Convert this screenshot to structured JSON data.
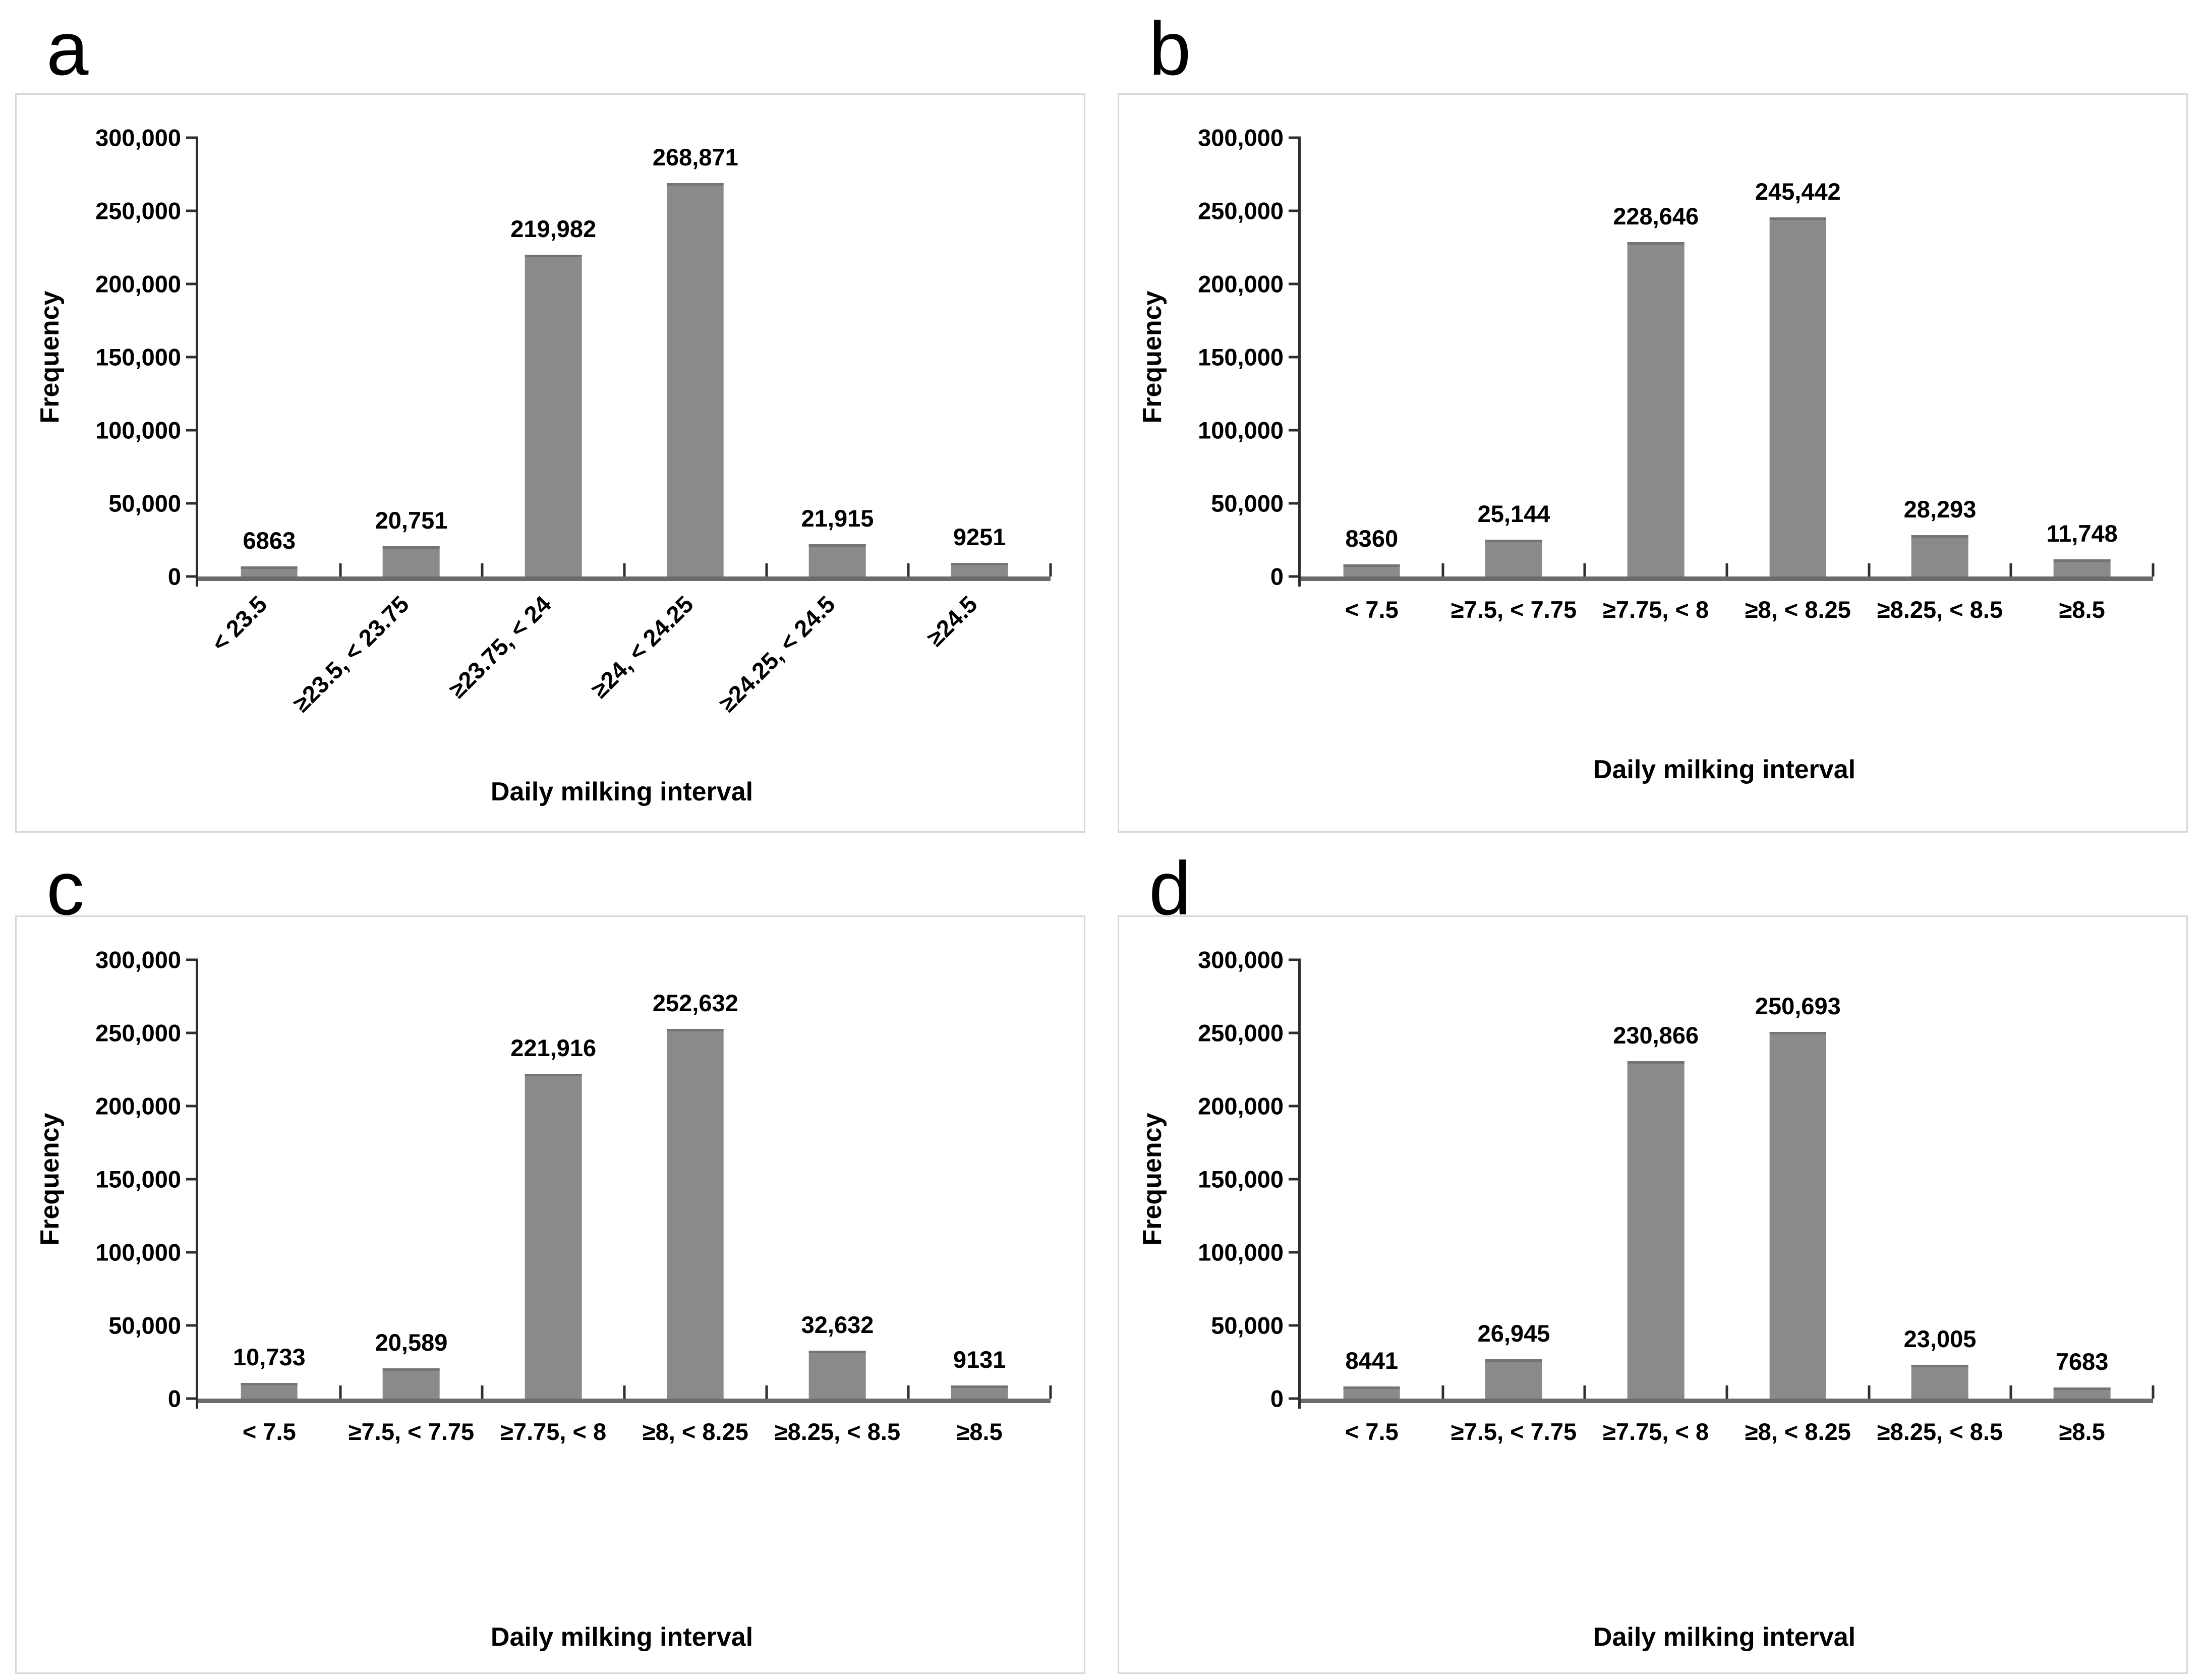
{
  "figure": {
    "ylabel": "Frequency",
    "xlabel": "Daily milking interval",
    "colors": {
      "bar": "#8a8a8a",
      "bar_edge": "#747474",
      "axis": "#2e2e2e",
      "baseline": "#6b6b6b",
      "panel_border": "#d8d8d8",
      "text": "#000000"
    }
  },
  "chart_data": [
    {
      "type": "bar",
      "panel_label": "a",
      "xlabel": "Daily milking interval",
      "ylabel": "Frequency",
      "categories": [
        "< 23.5",
        "≥23.5, < 23.75",
        "≥23.75, < 24",
        "≥24, < 24.25",
        "≥24.25, < 24.5",
        "≥24.5"
      ],
      "values": [
        6863,
        20751,
        219982,
        268871,
        21915,
        9251
      ],
      "value_labels": [
        "6863",
        "20,751",
        "219,982",
        "268,871",
        "21,915",
        "9251"
      ],
      "ylim": [
        0,
        300000
      ],
      "ytick_labels": [
        "300,000",
        "250,000",
        "200,000",
        "150,000",
        "100,000",
        "50,000",
        "0"
      ],
      "x_tick_rotation": 45,
      "grid": false,
      "legend": "none"
    },
    {
      "type": "bar",
      "panel_label": "b",
      "xlabel": "Daily milking interval",
      "ylabel": "Frequency",
      "categories": [
        "< 7.5",
        "≥7.5, < 7.75",
        "≥7.75, < 8",
        "≥8, < 8.25",
        "≥8.25, < 8.5",
        "≥8.5"
      ],
      "values": [
        8360,
        25144,
        228646,
        245442,
        28293,
        11748
      ],
      "value_labels": [
        "8360",
        "25,144",
        "228,646",
        "245,442",
        "28,293",
        "11,748"
      ],
      "ylim": [
        0,
        300000
      ],
      "ytick_labels": [
        "300,000",
        "250,000",
        "200,000",
        "150,000",
        "100,000",
        "50,000",
        "0"
      ],
      "x_tick_rotation": 0,
      "grid": false,
      "legend": "none"
    },
    {
      "type": "bar",
      "panel_label": "c",
      "xlabel": "Daily milking interval",
      "ylabel": "Frequency",
      "categories": [
        "< 7.5",
        "≥7.5, < 7.75",
        "≥7.75, < 8",
        "≥8, < 8.25",
        "≥8.25, < 8.5",
        "≥8.5"
      ],
      "values": [
        10733,
        20589,
        221916,
        252632,
        32632,
        9131
      ],
      "value_labels": [
        "10,733",
        "20,589",
        "221,916",
        "252,632",
        "32,632",
        "9131"
      ],
      "ylim": [
        0,
        300000
      ],
      "ytick_labels": [
        "300,000",
        "250,000",
        "200,000",
        "150,000",
        "100,000",
        "50,000",
        "0"
      ],
      "x_tick_rotation": 0,
      "grid": false,
      "legend": "none"
    },
    {
      "type": "bar",
      "panel_label": "d",
      "xlabel": "Daily milking interval",
      "ylabel": "Frequency",
      "categories": [
        "< 7.5",
        "≥7.5, < 7.75",
        "≥7.75, < 8",
        "≥8, < 8.25",
        "≥8.25, < 8.5",
        "≥8.5"
      ],
      "values": [
        8441,
        26945,
        230866,
        250693,
        23005,
        7683
      ],
      "value_labels": [
        "8441",
        "26,945",
        "230,866",
        "250,693",
        "23,005",
        "7683"
      ],
      "ylim": [
        0,
        300000
      ],
      "ytick_labels": [
        "300,000",
        "250,000",
        "200,000",
        "150,000",
        "100,000",
        "50,000",
        "0"
      ],
      "x_tick_rotation": 0,
      "grid": false,
      "legend": "none"
    }
  ]
}
